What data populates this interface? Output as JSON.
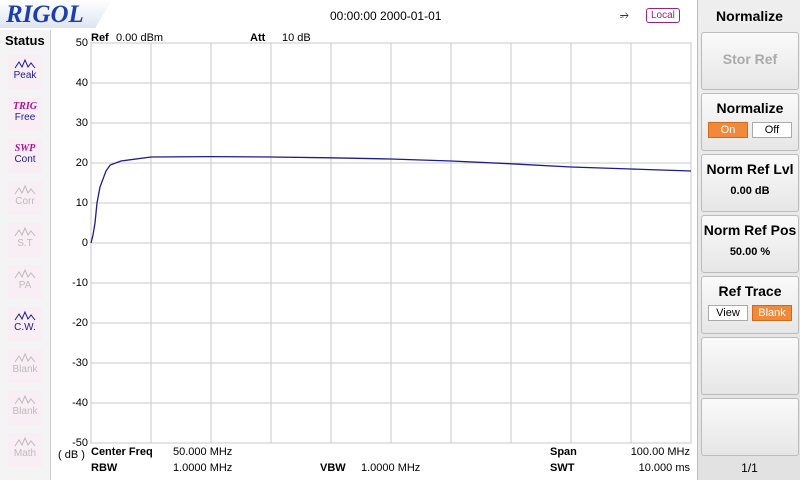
{
  "header": {
    "logo": "RIGOL",
    "datetime": "00:00:00 2000-01-01",
    "remote": "Local"
  },
  "status_panel": {
    "title": "Status",
    "items": [
      {
        "top": null,
        "label": "Peak"
      },
      {
        "top": "TRIG",
        "label": "Free"
      },
      {
        "top": "SWP",
        "label": "Cont"
      },
      {
        "top": null,
        "label": "Corr"
      },
      {
        "top": null,
        "label": "S.T"
      },
      {
        "top": null,
        "label": "PA"
      },
      {
        "top": null,
        "label": "C.W."
      },
      {
        "top": null,
        "label": "Blank"
      },
      {
        "top": null,
        "label": "Blank"
      },
      {
        "top": null,
        "label": "Math"
      }
    ]
  },
  "chart_data": {
    "type": "line",
    "ref_label": "Ref",
    "ref_value": "0.00 dBm",
    "att_label": "Att",
    "att_value": "10 dB",
    "y_unit": "( dB )",
    "x": [
      0,
      0.33,
      0.67,
      1,
      1.5,
      2.5,
      3.2,
      5,
      10,
      20,
      30,
      40,
      50,
      60,
      70,
      80,
      90,
      100
    ],
    "values": [
      0,
      2,
      5,
      10,
      14,
      18,
      19.5,
      20.5,
      21.5,
      21.6,
      21.5,
      21.3,
      21,
      20.5,
      19.8,
      19,
      18.5,
      18
    ],
    "color": "#1c1c8c",
    "xlim": [
      0,
      100
    ],
    "xticks": [
      0,
      10,
      20,
      30,
      40,
      50,
      60,
      70,
      80,
      90,
      100
    ],
    "ylim": [
      -50,
      50
    ],
    "yticks": [
      -50,
      -40,
      -30,
      -20,
      -10,
      0,
      10,
      20,
      30,
      40,
      50
    ],
    "grid": true,
    "footer": {
      "center_label": "Center Freq",
      "center_value": "50.000 MHz",
      "span_label": "Span",
      "span_value": "100.00 MHz",
      "rbw_label": "RBW",
      "rbw_value": "1.0000 MHz",
      "vbw_label": "VBW",
      "vbw_value": "1.0000 MHz",
      "swt_label": "SWT",
      "swt_value": "10.000 ms"
    }
  },
  "menu": {
    "title": "Normalize",
    "stor_ref": "Stor Ref",
    "normalize": {
      "label": "Normalize",
      "on": "On",
      "off": "Off"
    },
    "norm_ref_lvl": {
      "label": "Norm Ref Lvl",
      "value": "0.00 dB"
    },
    "norm_ref_pos": {
      "label": "Norm Ref Pos",
      "value": "50.00 %"
    },
    "ref_trace": {
      "label": "Ref Trace",
      "view": "View",
      "blank": "Blank"
    },
    "page": "1/1"
  }
}
